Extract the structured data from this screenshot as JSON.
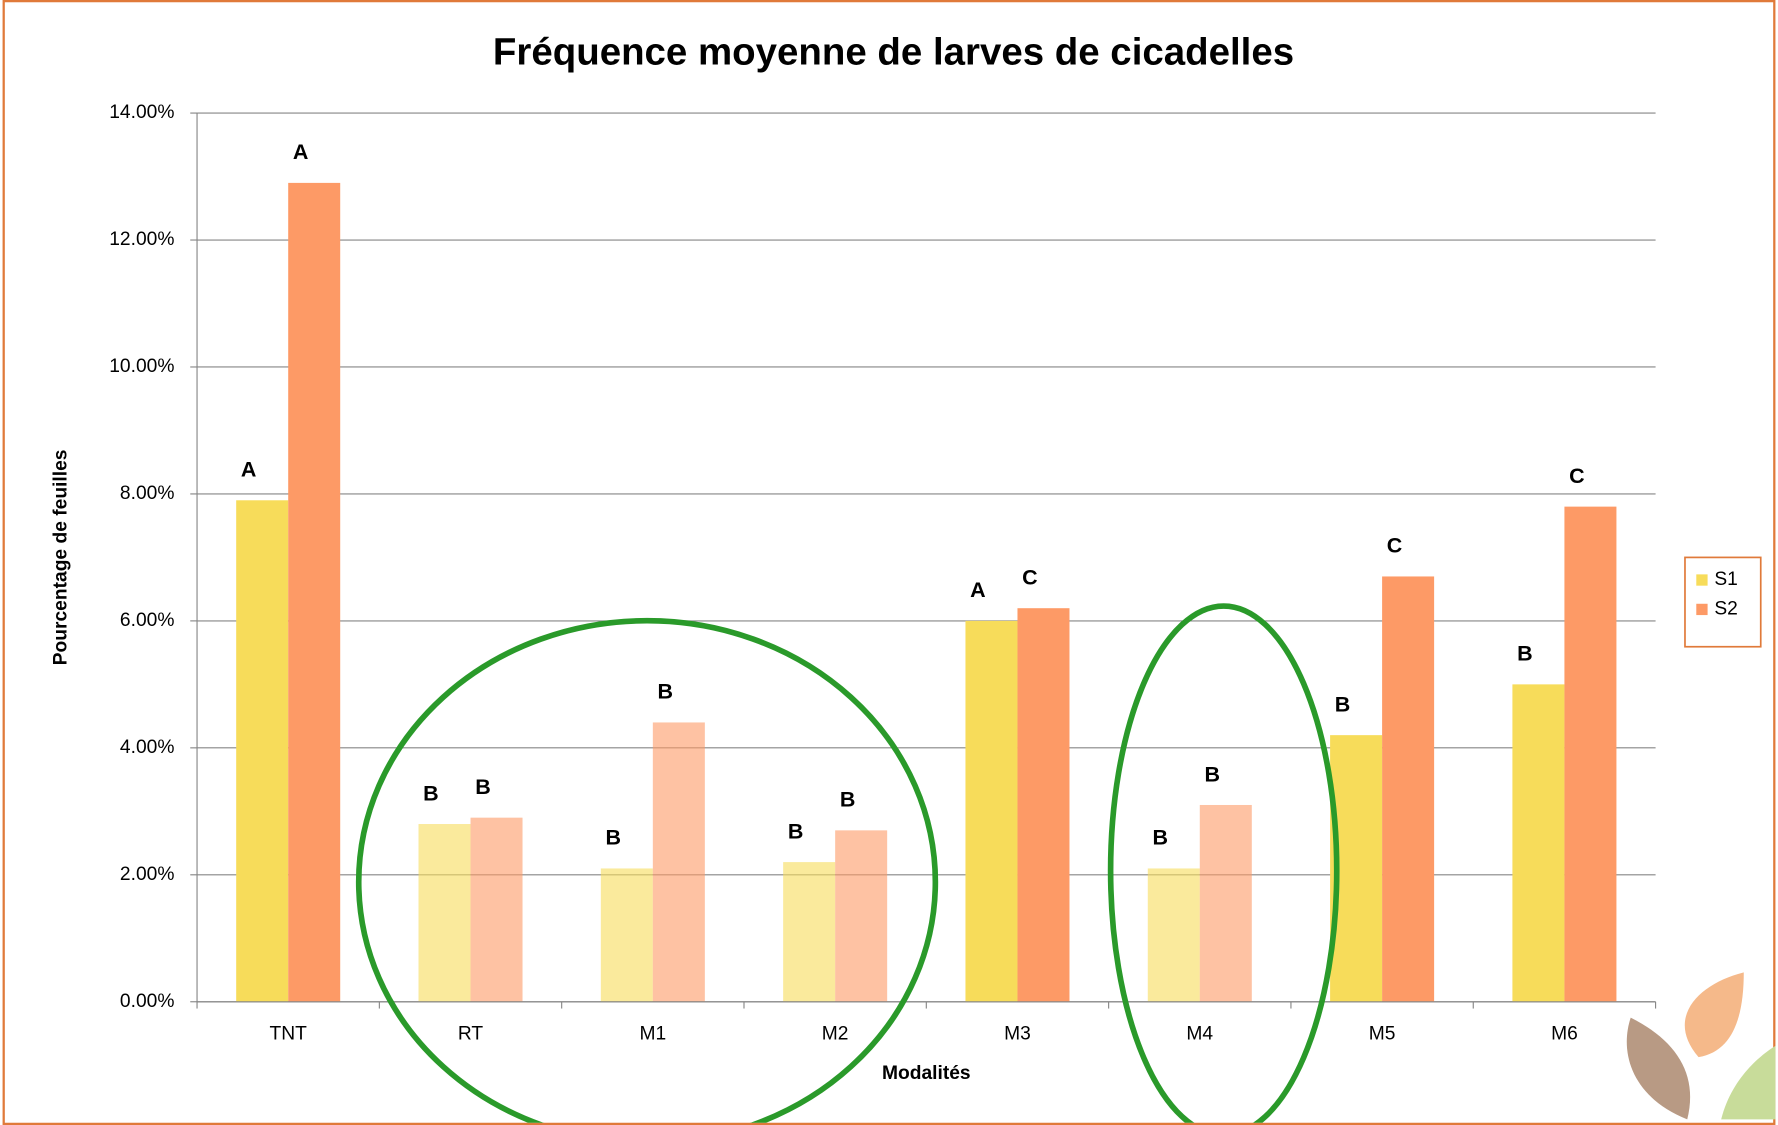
{
  "chart_data": {
    "type": "bar",
    "title": "Fréquence moyenne de larves de cicadelles",
    "x_label": "Modalités",
    "y_label": "Pourcentage de feuilles",
    "categories": [
      "TNT",
      "RT",
      "M1",
      "M2",
      "M3",
      "M4",
      "M5",
      "M6"
    ],
    "faded": [
      false,
      true,
      true,
      true,
      false,
      true,
      false,
      false
    ],
    "series": [
      {
        "name": "S1",
        "color": "#f7dc5a",
        "values": [
          7.9,
          2.8,
          2.1,
          2.2,
          6.0,
          2.1,
          4.2,
          5.0
        ],
        "letters": [
          "A",
          "B",
          "B",
          "B",
          "A",
          "B",
          "B",
          "B"
        ]
      },
      {
        "name": "S2",
        "color": "#fd9a66",
        "values": [
          12.9,
          2.9,
          4.4,
          2.7,
          6.2,
          3.1,
          6.7,
          7.8
        ],
        "letters": [
          "A",
          "B",
          "B",
          "B",
          "C",
          "B",
          "C",
          "C"
        ]
      }
    ],
    "ylim": [
      0,
      14
    ],
    "yticks": [
      {
        "value": 0,
        "label": "0.00%"
      },
      {
        "value": 2,
        "label": "2.00%"
      },
      {
        "value": 4,
        "label": "4.00%"
      },
      {
        "value": 6,
        "label": "6.00%"
      },
      {
        "value": 8,
        "label": "8.00%"
      },
      {
        "value": 10,
        "label": "10.00%"
      },
      {
        "value": 12,
        "label": "12.00%"
      },
      {
        "value": 14,
        "label": "14.00%"
      }
    ],
    "grid": true,
    "legend": "right"
  }
}
